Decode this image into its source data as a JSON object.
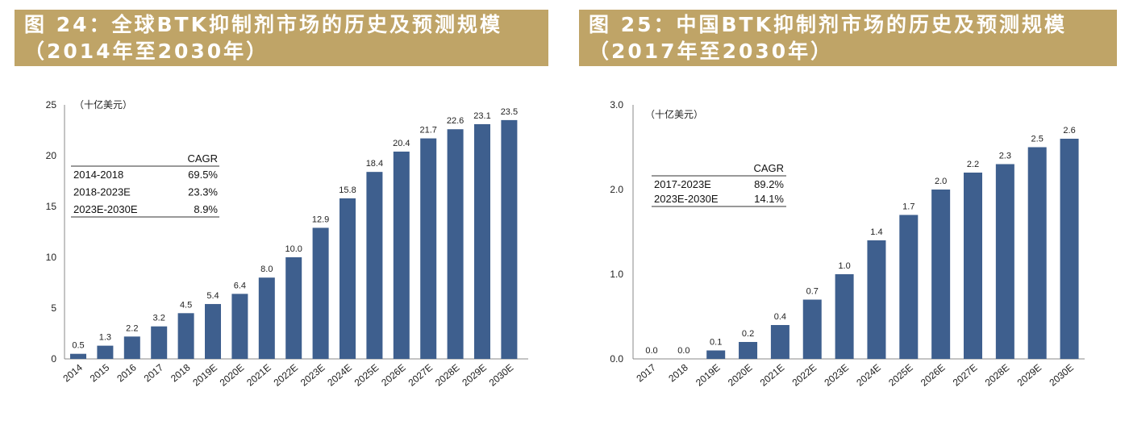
{
  "chart_data": [
    {
      "type": "bar",
      "title_line1": "图  24：全球BTK抑制剂市场的历史及预测规模",
      "title_line2": "（2014年至2030年）",
      "unit": "（十亿美元）",
      "categories": [
        "2014",
        "2015",
        "2016",
        "2017",
        "2018",
        "2019E",
        "2020E",
        "2021E",
        "2022E",
        "2023E",
        "2024E",
        "2025E",
        "2026E",
        "2027E",
        "2028E",
        "2029E",
        "2030E"
      ],
      "values": [
        0.5,
        1.3,
        2.2,
        3.2,
        4.5,
        5.4,
        6.4,
        8.0,
        10.0,
        12.9,
        15.8,
        18.4,
        20.4,
        21.7,
        22.6,
        23.1,
        23.5
      ],
      "labels": [
        "0.5",
        "1.3",
        "2.2",
        "3.2",
        "4.5",
        "5.4",
        "6.4",
        "8.0",
        "10.0",
        "12.9",
        "15.8",
        "18.4",
        "20.4",
        "21.7",
        "22.6",
        "23.1",
        "23.5"
      ],
      "yticks": [
        "0",
        "5",
        "10",
        "15",
        "20",
        "25"
      ],
      "ylim": [
        0,
        25
      ],
      "bar_color": "#3e5f8e",
      "cagr_table": {
        "header": "CAGR",
        "rows": [
          [
            "2014-2018",
            "69.5%"
          ],
          [
            "2018-2023E",
            "23.3%"
          ],
          [
            "2023E-2030E",
            "8.9%"
          ]
        ]
      }
    },
    {
      "type": "bar",
      "title_line1": "图  25：中国BTK抑制剂市场的历史及预测规模",
      "title_line2": "（2017年至2030年）",
      "unit": "（十亿美元）",
      "categories": [
        "2017",
        "2018",
        "2019E",
        "2020E",
        "2021E",
        "2022E",
        "2023E",
        "2024E",
        "2025E",
        "2026E",
        "2027E",
        "2028E",
        "2029E",
        "2030E"
      ],
      "values": [
        0.0,
        0.0,
        0.1,
        0.2,
        0.4,
        0.7,
        1.0,
        1.4,
        1.7,
        2.0,
        2.2,
        2.3,
        2.5,
        2.6
      ],
      "labels": [
        "0.0",
        "0.0",
        "0.1",
        "0.2",
        "0.4",
        "0.7",
        "1.0",
        "1.4",
        "1.7",
        "2.0",
        "2.2",
        "2.3",
        "2.5",
        "2.6"
      ],
      "yticks": [
        "0.0",
        "1.0",
        "2.0",
        "3.0"
      ],
      "ylim": [
        0,
        3
      ],
      "bar_color": "#3e5f8e",
      "cagr_table": {
        "header": "CAGR",
        "rows": [
          [
            "2017-2023E",
            "89.2%"
          ],
          [
            "2023E-2030E",
            "14.1%"
          ]
        ]
      }
    }
  ]
}
